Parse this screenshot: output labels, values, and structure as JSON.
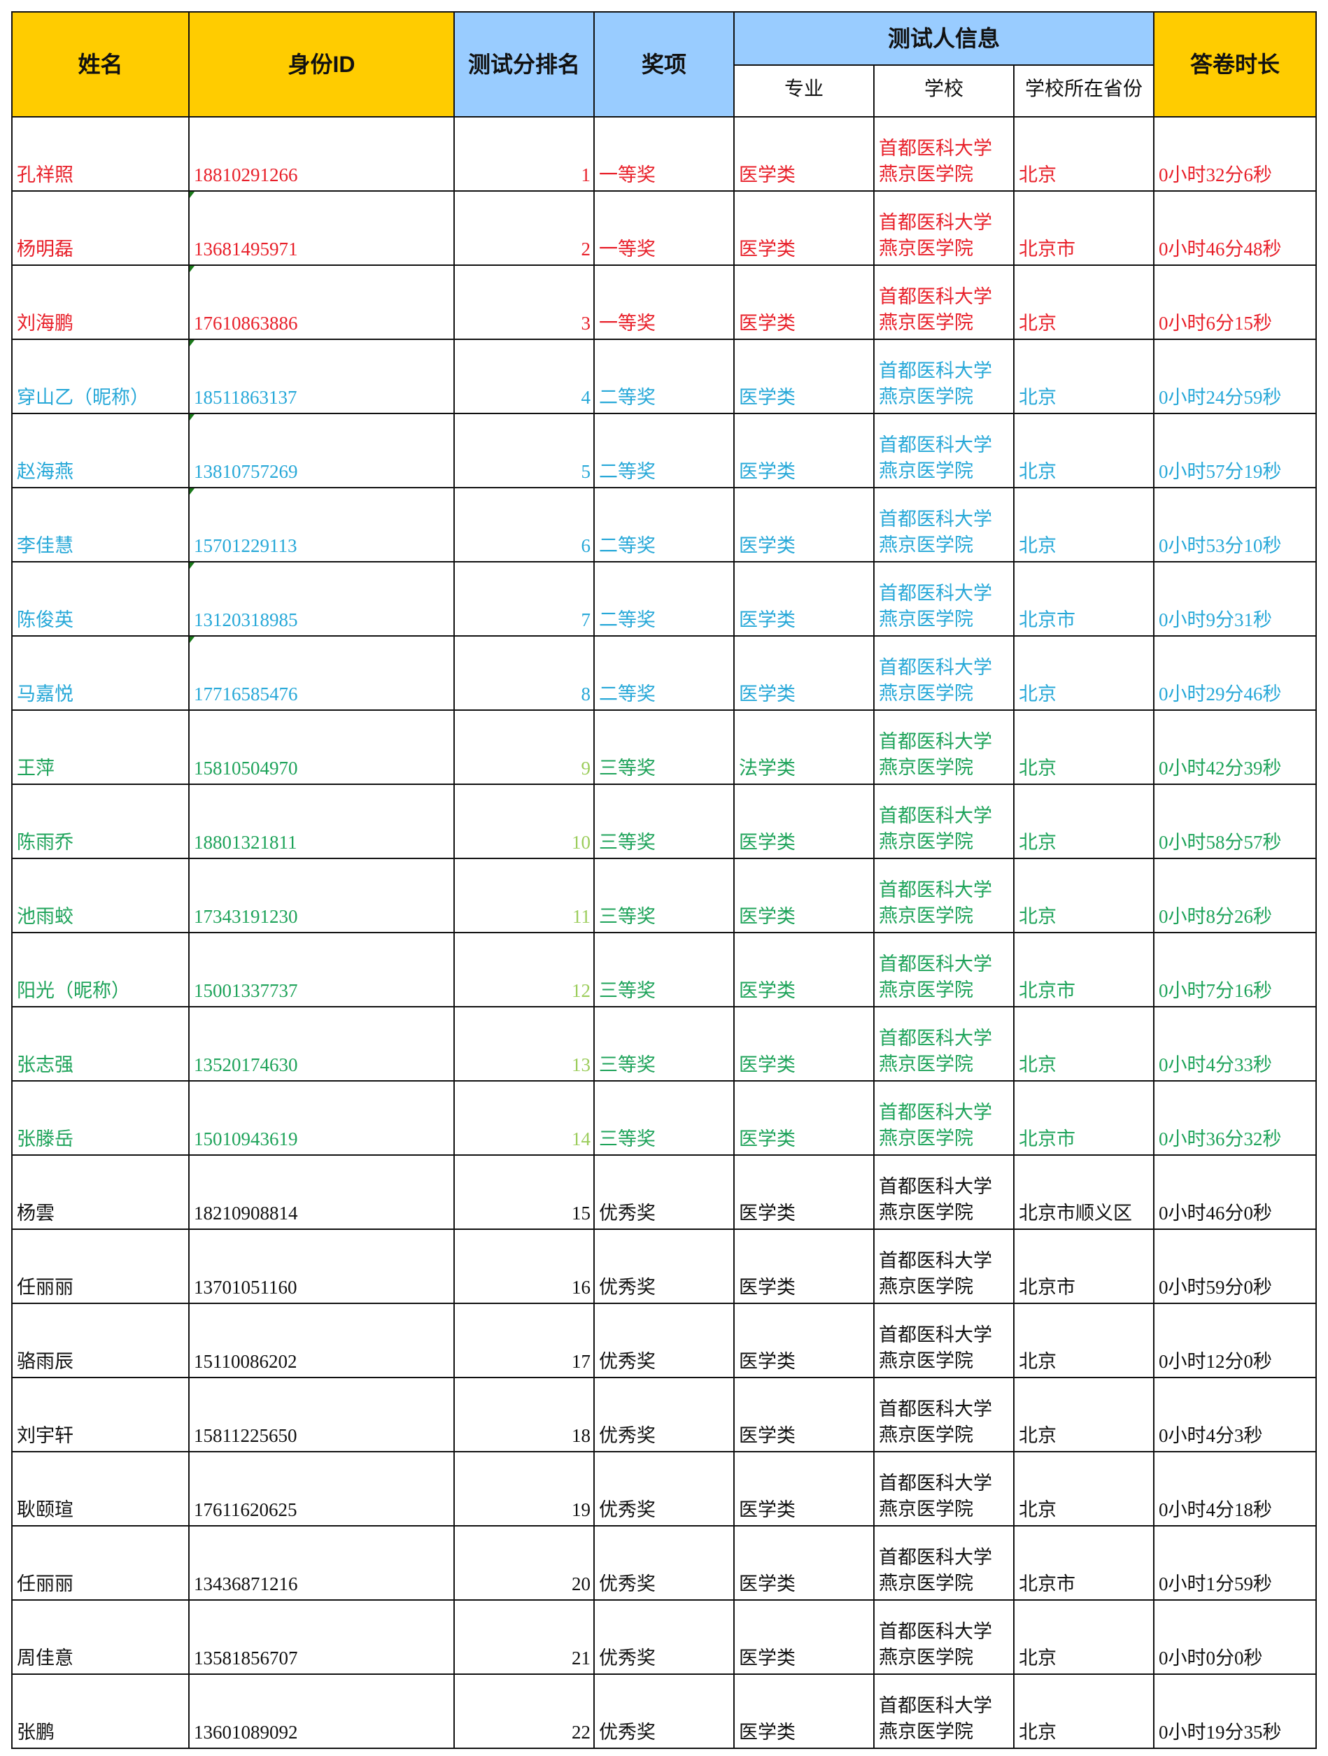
{
  "colors": {
    "header_yellow": "#ffcc00",
    "header_blue": "#99ccff",
    "first_prize": "#e8202a",
    "second_prize": "#27a8d8",
    "third_prize": "#1ea35a",
    "excellence": "#111111"
  },
  "header": {
    "name": "姓名",
    "id": "身份ID",
    "rank": "测试分排名",
    "award": "奖项",
    "info_group": "测试人信息",
    "major": "专业",
    "school": "学校",
    "province": "学校所在省份",
    "duration": "答卷时长"
  },
  "rows": [
    {
      "name": "孔祥照",
      "id": "18810291266",
      "rank": "1",
      "award": "一等奖",
      "major": "医学类",
      "school1": "首都医科大学",
      "school2": "燕京医学院",
      "province": "北京",
      "duration": "0小时32分6秒",
      "color": "red",
      "tick": false
    },
    {
      "name": "杨明磊",
      "id": "13681495971",
      "rank": "2",
      "award": "一等奖",
      "major": "医学类",
      "school1": "首都医科大学",
      "school2": "燕京医学院",
      "province": "北京市",
      "duration": "0小时46分48秒",
      "color": "red",
      "tick": true
    },
    {
      "name": "刘海鹏",
      "id": "17610863886",
      "rank": "3",
      "award": "一等奖",
      "major": "医学类",
      "school1": "首都医科大学",
      "school2": "燕京医学院",
      "province": "北京",
      "duration": "0小时6分15秒",
      "color": "red",
      "tick": true
    },
    {
      "name": "穿山乙（昵称）",
      "id": "18511863137",
      "rank": "4",
      "award": "二等奖",
      "major": "医学类",
      "school1": "首都医科大学",
      "school2": "燕京医学院",
      "province": "北京",
      "duration": "0小时24分59秒",
      "color": "blue",
      "tick": true
    },
    {
      "name": "赵海燕",
      "id": "13810757269",
      "rank": "5",
      "award": "二等奖",
      "major": "医学类",
      "school1": "首都医科大学",
      "school2": "燕京医学院",
      "province": "北京",
      "duration": "0小时57分19秒",
      "color": "blue",
      "tick": true
    },
    {
      "name": "李佳慧",
      "id": "15701229113",
      "rank": "6",
      "award": "二等奖",
      "major": "医学类",
      "school1": "首都医科大学",
      "school2": "燕京医学院",
      "province": "北京",
      "duration": "0小时53分10秒",
      "color": "blue",
      "tick": true
    },
    {
      "name": "陈俊英",
      "id": "13120318985",
      "rank": "7",
      "award": "二等奖",
      "major": "医学类",
      "school1": "首都医科大学",
      "school2": "燕京医学院",
      "province": "北京市",
      "duration": "0小时9分31秒",
      "color": "blue",
      "tick": true
    },
    {
      "name": "马嘉悦",
      "id": "17716585476",
      "rank": "8",
      "award": "二等奖",
      "major": "医学类",
      "school1": "首都医科大学",
      "school2": "燕京医学院",
      "province": "北京",
      "duration": "0小时29分46秒",
      "color": "blue",
      "tick": true
    },
    {
      "name": "王萍",
      "id": "15810504970",
      "rank": "9",
      "award": "三等奖",
      "major": "法学类",
      "school1": "首都医科大学",
      "school2": "燕京医学院",
      "province": "北京",
      "duration": "0小时42分39秒",
      "color": "green",
      "tick": false
    },
    {
      "name": "陈雨乔",
      "id": "18801321811",
      "rank": "10",
      "award": "三等奖",
      "major": "医学类",
      "school1": "首都医科大学",
      "school2": "燕京医学院",
      "province": "北京",
      "duration": "0小时58分57秒",
      "color": "green",
      "tick": false
    },
    {
      "name": "池雨蛟",
      "id": "17343191230",
      "rank": "11",
      "award": "三等奖",
      "major": "医学类",
      "school1": "首都医科大学",
      "school2": "燕京医学院",
      "province": "北京",
      "duration": "0小时8分26秒",
      "color": "green",
      "tick": false
    },
    {
      "name": "阳光（昵称）",
      "id": "15001337737",
      "rank": "12",
      "award": "三等奖",
      "major": "医学类",
      "school1": "首都医科大学",
      "school2": "燕京医学院",
      "province": "北京市",
      "duration": "0小时7分16秒",
      "color": "green",
      "tick": false
    },
    {
      "name": "张志强",
      "id": "13520174630",
      "rank": "13",
      "award": "三等奖",
      "major": "医学类",
      "school1": "首都医科大学",
      "school2": "燕京医学院",
      "province": "北京",
      "duration": "0小时4分33秒",
      "color": "green",
      "tick": false
    },
    {
      "name": "张滕岳",
      "id": "15010943619",
      "rank": "14",
      "award": "三等奖",
      "major": "医学类",
      "school1": "首都医科大学",
      "school2": "燕京医学院",
      "province": "北京市",
      "duration": "0小时36分32秒",
      "color": "green",
      "tick": false
    },
    {
      "name": "杨雲",
      "id": "18210908814",
      "rank": "15",
      "award": "优秀奖",
      "major": "医学类",
      "school1": "首都医科大学",
      "school2": "燕京医学院",
      "province": "北京市顺义区",
      "duration": "0小时46分0秒",
      "color": "black",
      "tick": false
    },
    {
      "name": "任丽丽",
      "id": "13701051160",
      "rank": "16",
      "award": "优秀奖",
      "major": "医学类",
      "school1": "首都医科大学",
      "school2": "燕京医学院",
      "province": "北京市",
      "duration": "0小时59分0秒",
      "color": "black",
      "tick": false
    },
    {
      "name": "骆雨辰",
      "id": "15110086202",
      "rank": "17",
      "award": "优秀奖",
      "major": "医学类",
      "school1": "首都医科大学",
      "school2": "燕京医学院",
      "province": "北京",
      "duration": "0小时12分0秒",
      "color": "black",
      "tick": false
    },
    {
      "name": "刘宇轩",
      "id": "15811225650",
      "rank": "18",
      "award": "优秀奖",
      "major": "医学类",
      "school1": "首都医科大学",
      "school2": "燕京医学院",
      "province": "北京",
      "duration": "0小时4分3秒",
      "color": "black",
      "tick": false
    },
    {
      "name": "耿颐瑄",
      "id": "17611620625",
      "rank": "19",
      "award": "优秀奖",
      "major": "医学类",
      "school1": "首都医科大学",
      "school2": "燕京医学院",
      "province": "北京",
      "duration": "0小时4分18秒",
      "color": "black",
      "tick": false
    },
    {
      "name": "任丽丽",
      "id": "13436871216",
      "rank": "20",
      "award": "优秀奖",
      "major": "医学类",
      "school1": "首都医科大学",
      "school2": "燕京医学院",
      "province": "北京市",
      "duration": "0小时1分59秒",
      "color": "black",
      "tick": false
    },
    {
      "name": "周佳意",
      "id": "13581856707",
      "rank": "21",
      "award": "优秀奖",
      "major": "医学类",
      "school1": "首都医科大学",
      "school2": "燕京医学院",
      "province": "北京",
      "duration": "0小时0分0秒",
      "color": "black",
      "tick": false
    },
    {
      "name": "张鹏",
      "id": "13601089092",
      "rank": "22",
      "award": "优秀奖",
      "major": "医学类",
      "school1": "首都医科大学",
      "school2": "燕京医学院",
      "province": "北京",
      "duration": "0小时19分35秒",
      "color": "black",
      "tick": false
    }
  ]
}
